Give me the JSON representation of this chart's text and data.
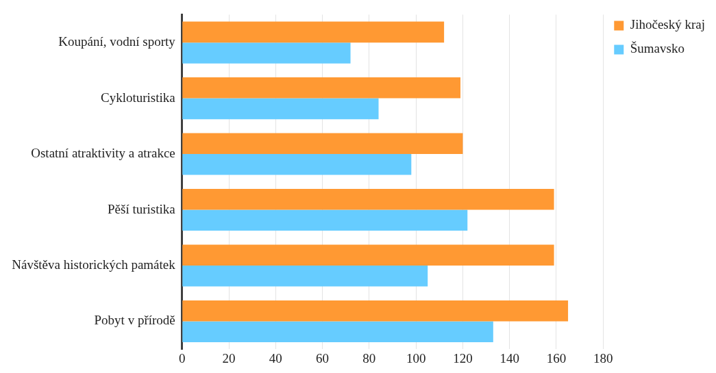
{
  "chart_data": {
    "type": "bar",
    "orientation": "horizontal",
    "categories": [
      "Koupání, vodní sporty",
      "Cykloturistika",
      "Ostatní atraktivity a atrakce",
      "Pěší turistika",
      "Návštěva historických památek",
      "Pobyt v přírodě"
    ],
    "series": [
      {
        "name": "Jihočeský kraj",
        "color": "#ff9933",
        "values": [
          112,
          119,
          120,
          159,
          159,
          165
        ]
      },
      {
        "name": "Šumavsko",
        "color": "#66ccff",
        "values": [
          72,
          84,
          98,
          122,
          105,
          133
        ]
      }
    ],
    "xlim": [
      0,
      180
    ],
    "xticks": [
      0,
      20,
      40,
      60,
      80,
      100,
      120,
      140,
      160,
      180
    ],
    "grid": "x",
    "legend": "right"
  }
}
